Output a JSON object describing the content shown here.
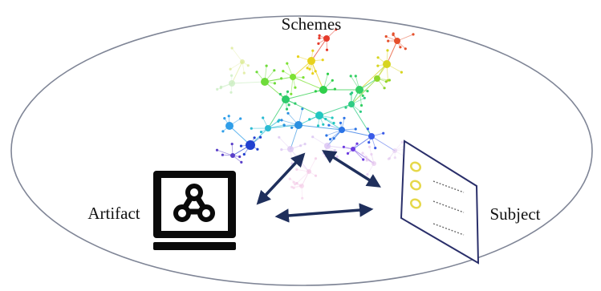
{
  "labels": {
    "schemes": "Schemes",
    "artifact": "Artifact",
    "subject": "Subject"
  },
  "colors": {
    "boundary": "#7f8596",
    "arrow": "#1f2f5c",
    "icon": "#0a0a0a",
    "sheet_border": "#2a2f6a",
    "sheet_circles": "#e6d84a",
    "sheet_lines": "#6a6a6a"
  },
  "icons": {
    "artifact": "monitor-network-icon",
    "subject": "questionnaire-sheet-icon"
  }
}
